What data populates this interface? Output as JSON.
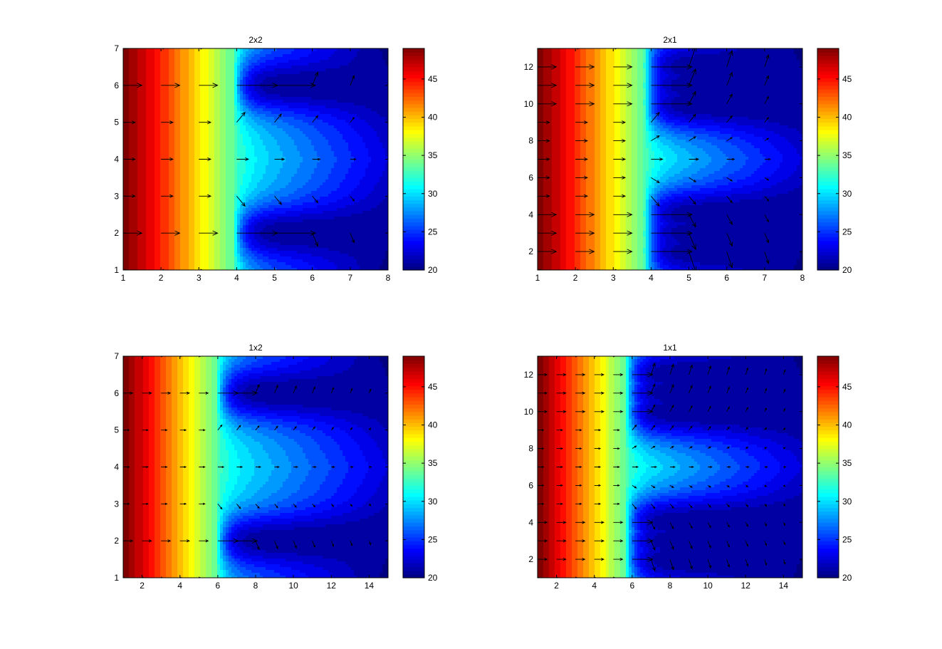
{
  "figure": {
    "type": "contour-quiver-grid",
    "colormap": "jet",
    "shared_color_range": [
      20,
      49
    ],
    "colorbar_ticks": [
      20,
      25,
      30,
      35,
      40,
      45
    ]
  },
  "chart_data": [
    {
      "type": "heatmap",
      "overlay": "quiver",
      "title": "2x2",
      "xlabel": "",
      "ylabel": "",
      "xlim": [
        1,
        8
      ],
      "ylim": [
        1,
        7
      ],
      "xticks": [
        1,
        2,
        3,
        4,
        5,
        6,
        7,
        8
      ],
      "yticks": [
        1,
        2,
        3,
        4,
        5,
        6,
        7
      ],
      "colorbar_ticks": [
        20,
        25,
        30,
        35,
        40,
        45
      ],
      "color_range": [
        20,
        49
      ],
      "hot_side_value": 49,
      "front_x": 3.9,
      "cold_rows_y": [
        2,
        6
      ],
      "quiver_x": [
        1,
        2,
        3,
        4,
        5,
        6,
        7
      ],
      "quiver_y": [
        1,
        2,
        3,
        4,
        5,
        6,
        7
      ]
    },
    {
      "type": "heatmap",
      "overlay": "quiver",
      "title": "2x1",
      "xlabel": "",
      "ylabel": "",
      "xlim": [
        1,
        8
      ],
      "ylim": [
        1,
        13
      ],
      "xticks": [
        1,
        2,
        3,
        4,
        5,
        6,
        7,
        8
      ],
      "yticks": [
        2,
        4,
        6,
        8,
        10,
        12
      ],
      "colorbar_ticks": [
        20,
        25,
        30,
        35,
        40,
        45
      ],
      "color_range": [
        20,
        49
      ],
      "hot_side_value": 49,
      "front_x": 3.8,
      "cold_rows_y": [
        2,
        3,
        4,
        10,
        11,
        12
      ],
      "quiver_x": [
        1,
        2,
        3,
        4,
        5,
        6,
        7
      ],
      "quiver_y": [
        1,
        2,
        3,
        4,
        5,
        6,
        7,
        8,
        9,
        10,
        11,
        12,
        13
      ]
    },
    {
      "type": "heatmap",
      "overlay": "quiver",
      "title": "1x2",
      "xlabel": "",
      "ylabel": "",
      "xlim": [
        1,
        15
      ],
      "ylim": [
        1,
        7
      ],
      "xticks": [
        2,
        4,
        6,
        8,
        10,
        12,
        14
      ],
      "yticks": [
        1,
        2,
        3,
        4,
        5,
        6,
        7
      ],
      "colorbar_ticks": [
        20,
        25,
        30,
        35,
        40,
        45
      ],
      "color_range": [
        20,
        49
      ],
      "hot_side_value": 49,
      "front_x": 5.9,
      "cold_rows_y": [
        2,
        6
      ],
      "quiver_x": [
        1,
        2,
        3,
        4,
        5,
        6,
        7,
        8,
        9,
        10,
        11,
        12,
        13,
        14
      ],
      "quiver_y": [
        1,
        2,
        3,
        4,
        5,
        6,
        7
      ]
    },
    {
      "type": "heatmap",
      "overlay": "quiver",
      "title": "1x1",
      "xlabel": "",
      "ylabel": "",
      "xlim": [
        1,
        15
      ],
      "ylim": [
        1,
        13
      ],
      "xticks": [
        2,
        4,
        6,
        8,
        10,
        12,
        14
      ],
      "yticks": [
        2,
        4,
        6,
        8,
        10,
        12
      ],
      "colorbar_ticks": [
        20,
        25,
        30,
        35,
        40,
        45
      ],
      "color_range": [
        20,
        49
      ],
      "hot_side_value": 49,
      "front_x": 5.6,
      "cold_rows_y": [
        2,
        3,
        4,
        10,
        11,
        12
      ],
      "quiver_x": [
        1,
        2,
        3,
        4,
        5,
        6,
        7,
        8,
        9,
        10,
        11,
        12,
        13,
        14
      ],
      "quiver_y": [
        1,
        2,
        3,
        4,
        5,
        6,
        7,
        8,
        9,
        10,
        11,
        12,
        13
      ]
    }
  ]
}
